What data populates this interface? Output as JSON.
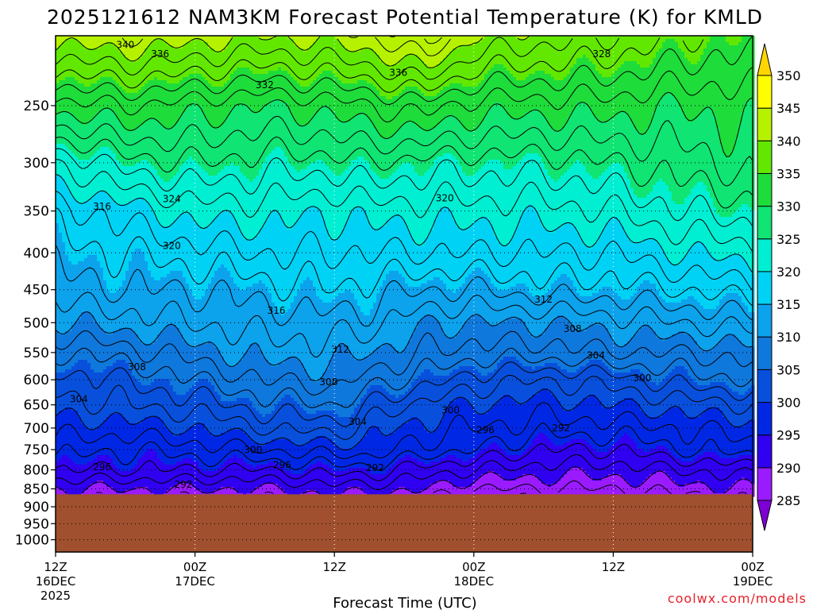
{
  "chart_data": {
    "type": "contour",
    "title": "2025121612 NAM3KM Forecast Potential Temperature (K) for KMLD",
    "xlabel": "Forecast Time (UTC)",
    "ylabel": "",
    "credit": "coolwx.com/models",
    "x_ticks": [
      {
        "hours": 0,
        "time": "12Z",
        "date": "16DEC",
        "year": "2025"
      },
      {
        "hours": 12,
        "time": "00Z",
        "date": "17DEC",
        "year": ""
      },
      {
        "hours": 24,
        "time": "12Z",
        "date": "",
        "year": ""
      },
      {
        "hours": 36,
        "time": "00Z",
        "date": "18DEC",
        "year": ""
      },
      {
        "hours": 48,
        "time": "12Z",
        "date": "",
        "year": ""
      },
      {
        "hours": 60,
        "time": "00Z",
        "date": "19DEC",
        "year": ""
      }
    ],
    "xlim_hours": [
      0,
      60
    ],
    "y_axis": {
      "unit": "hPa",
      "inverted": true,
      "ticks": [
        250,
        300,
        350,
        400,
        450,
        500,
        550,
        600,
        650,
        700,
        750,
        800,
        850,
        900,
        950,
        1000
      ],
      "ylim": [
        200,
        1040
      ]
    },
    "surface_pressure_hpa": 865,
    "grid": {
      "style": "dotted",
      "on": true
    },
    "colorbar": {
      "levels": [
        285,
        290,
        295,
        300,
        305,
        310,
        315,
        320,
        325,
        330,
        335,
        340,
        345,
        350
      ],
      "colors": [
        "#7e00d4",
        "#9a1bff",
        "#3000f0",
        "#0028e4",
        "#0850dc",
        "#0f78dc",
        "#0da2ec",
        "#00d2f5",
        "#00efd2",
        "#10e472",
        "#1edc3a",
        "#62e800",
        "#b6f200",
        "#fffe00",
        "#ffd600"
      ],
      "placement": "right"
    },
    "contour_interval_k": 2,
    "profile_levels_hpa": [
      200,
      250,
      300,
      350,
      400,
      450,
      500,
      550,
      600,
      650,
      700,
      750,
      800,
      850,
      865
    ],
    "profiles": [
      {
        "hours": 0,
        "theta": [
          341,
          331,
          322,
          317,
          315,
          313,
          310,
          306,
          303,
          301,
          299,
          297,
          294,
          290,
          289
        ]
      },
      {
        "hours": 6,
        "theta": [
          342,
          332,
          325,
          319,
          316,
          314,
          311,
          307,
          304,
          302,
          299,
          296,
          294,
          290,
          289
        ]
      },
      {
        "hours": 12,
        "theta": [
          341,
          331,
          326,
          321,
          317,
          314,
          312,
          309,
          306,
          303,
          300,
          297,
          294,
          290,
          289
        ]
      },
      {
        "hours": 18,
        "theta": [
          340,
          330,
          325,
          321,
          318,
          315,
          313,
          311,
          308,
          305,
          302,
          298,
          294,
          290,
          289
        ]
      },
      {
        "hours": 24,
        "theta": [
          341,
          331,
          325,
          320,
          318,
          316,
          313,
          311,
          309,
          306,
          303,
          299,
          295,
          291,
          290
        ]
      },
      {
        "hours": 27,
        "theta": [
          342,
          332,
          326,
          321,
          318,
          315,
          313,
          310,
          307,
          304,
          301,
          299,
          295,
          291,
          290
        ]
      },
      {
        "hours": 32,
        "theta": [
          345,
          333,
          325,
          321,
          318,
          314,
          310,
          308,
          305,
          301,
          299,
          297,
          293,
          290,
          289
        ]
      },
      {
        "hours": 36,
        "theta": [
          340,
          331,
          325,
          321,
          318,
          314,
          310,
          307,
          303,
          300,
          298,
          296,
          292,
          288,
          287
        ]
      },
      {
        "hours": 42,
        "theta": [
          339,
          331,
          325,
          321,
          318,
          315,
          310,
          307,
          302,
          299,
          297,
          294,
          291,
          288,
          287
        ]
      },
      {
        "hours": 48,
        "theta": [
          338,
          331,
          326,
          322,
          318,
          315,
          311,
          308,
          303,
          300,
          297,
          294,
          291,
          288,
          287
        ]
      },
      {
        "hours": 54,
        "theta": [
          336,
          330,
          327,
          324,
          320,
          316,
          312,
          308,
          305,
          301,
          298,
          296,
          292,
          289,
          288
        ]
      },
      {
        "hours": 60,
        "theta": [
          335,
          331,
          329,
          325,
          321,
          317,
          313,
          309,
          306,
          302,
          299,
          297,
          293,
          290,
          289
        ]
      }
    ],
    "contour_labels": [
      {
        "value": "340",
        "hours": 6.0,
        "hPa": 206
      },
      {
        "value": "336",
        "hours": 9.0,
        "hPa": 212
      },
      {
        "value": "336",
        "hours": 29.5,
        "hPa": 225
      },
      {
        "value": "328",
        "hours": 47.0,
        "hPa": 212
      },
      {
        "value": "332",
        "hours": 18.0,
        "hPa": 234
      },
      {
        "value": "324",
        "hours": 10.0,
        "hPa": 337
      },
      {
        "value": "316",
        "hours": 4.0,
        "hPa": 345
      },
      {
        "value": "320",
        "hours": 10.0,
        "hPa": 391
      },
      {
        "value": "320",
        "hours": 33.5,
        "hPa": 336
      },
      {
        "value": "316",
        "hours": 19.0,
        "hPa": 481
      },
      {
        "value": "312",
        "hours": 24.5,
        "hPa": 545
      },
      {
        "value": "312",
        "hours": 42.0,
        "hPa": 464
      },
      {
        "value": "308",
        "hours": 7.0,
        "hPa": 576
      },
      {
        "value": "308",
        "hours": 23.5,
        "hPa": 604
      },
      {
        "value": "308",
        "hours": 44.5,
        "hPa": 510
      },
      {
        "value": "304",
        "hours": 2.0,
        "hPa": 638
      },
      {
        "value": "304",
        "hours": 26.0,
        "hPa": 686
      },
      {
        "value": "304",
        "hours": 46.5,
        "hPa": 555
      },
      {
        "value": "300",
        "hours": 17.0,
        "hPa": 751
      },
      {
        "value": "300",
        "hours": 34.0,
        "hPa": 661
      },
      {
        "value": "300",
        "hours": 50.5,
        "hPa": 597
      },
      {
        "value": "296",
        "hours": 4.0,
        "hPa": 793
      },
      {
        "value": "296",
        "hours": 19.5,
        "hPa": 788
      },
      {
        "value": "296",
        "hours": 37.0,
        "hPa": 705
      },
      {
        "value": "292",
        "hours": 11.0,
        "hPa": 838
      },
      {
        "value": "292",
        "hours": 27.5,
        "hPa": 795
      },
      {
        "value": "292",
        "hours": 43.5,
        "hPa": 700
      }
    ]
  }
}
